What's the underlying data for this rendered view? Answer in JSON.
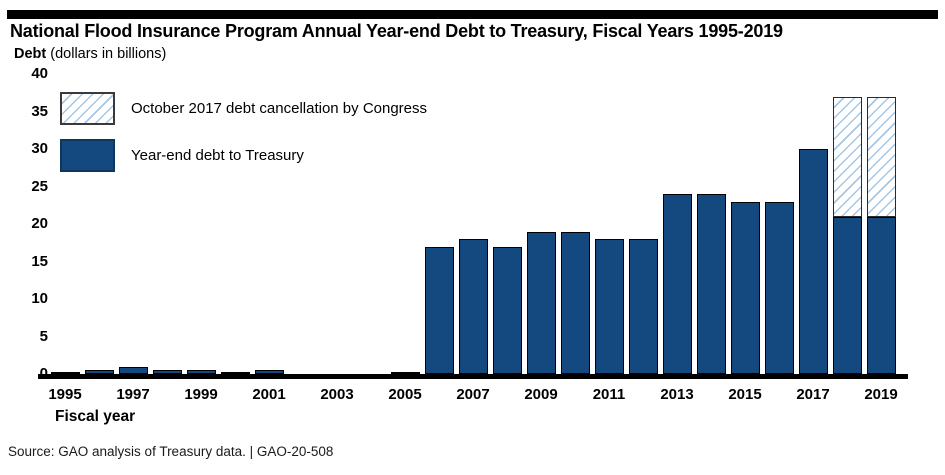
{
  "header": {
    "title": "National Flood Insurance Program Annual Year-end Debt to Treasury, Fiscal Years 1995-2019",
    "subtitle_label": "Debt",
    "subtitle_rest": " (dollars in billions)"
  },
  "legend": {
    "items": [
      {
        "label": "October 2017 debt cancellation by Congress",
        "swatch": "hatched"
      },
      {
        "label": "Year-end debt to Treasury",
        "swatch": "solid"
      }
    ]
  },
  "axes": {
    "xlabel": "Fiscal year",
    "y_ticks": [
      "40",
      "35",
      "30",
      "25",
      "20",
      "15",
      "10",
      "5",
      "0"
    ],
    "x_ticks": [
      "1995",
      "1997",
      "1999",
      "2001",
      "2003",
      "2005",
      "2007",
      "2009",
      "2011",
      "2013",
      "2015",
      "2017",
      "2019"
    ]
  },
  "source_line": "Source: GAO analysis of Treasury data.  |  GAO-20-508",
  "colors": {
    "bar_fill": "#14497f",
    "hatch_line": "#a6c6e6",
    "axis": "#000000"
  },
  "chart_data": {
    "type": "bar",
    "stacked": true,
    "title": "National Flood Insurance Program Annual Year-end Debt to Treasury, Fiscal Years 1995-2019",
    "subtitle": "Debt (dollars in billions)",
    "xlabel": "Fiscal year",
    "ylabel": "Debt (dollars in billions)",
    "ylim": [
      0,
      40
    ],
    "y_tick_step": 5,
    "grid": false,
    "legend_position": "upper-left-inside",
    "categories": [
      1995,
      1996,
      1997,
      1998,
      1999,
      2000,
      2001,
      2002,
      2003,
      2004,
      2005,
      2006,
      2007,
      2008,
      2009,
      2010,
      2011,
      2012,
      2013,
      2014,
      2015,
      2016,
      2017,
      2018,
      2019
    ],
    "series": [
      {
        "name": "Year-end debt to Treasury",
        "style": "solid",
        "color": "#14497f",
        "values": [
          0.2,
          0.6,
          0.9,
          0.5,
          0.5,
          0.3,
          0.6,
          0,
          0,
          0,
          0.2,
          17,
          18,
          17,
          19,
          19,
          18,
          18,
          24,
          24,
          23,
          23,
          30,
          21,
          21
        ]
      },
      {
        "name": "October 2017 debt cancellation by Congress",
        "style": "hatched",
        "color": "#a6c6e6",
        "values": [
          0,
          0,
          0,
          0,
          0,
          0,
          0,
          0,
          0,
          0,
          0,
          0,
          0,
          0,
          0,
          0,
          0,
          0,
          0,
          0,
          0,
          0,
          0,
          16,
          16
        ]
      }
    ]
  }
}
